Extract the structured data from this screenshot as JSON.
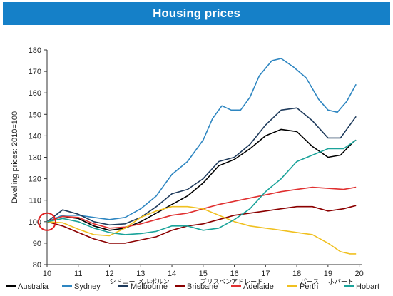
{
  "chart_data": {
    "type": "line",
    "title": "Housing prices",
    "ylabel": "Dwelling prices: 2010=100",
    "xlabel": "",
    "ylim": [
      80,
      180
    ],
    "xlim": [
      10,
      20.1
    ],
    "y_ticks": [
      80,
      90,
      100,
      110,
      120,
      130,
      140,
      150,
      160,
      170,
      180
    ],
    "x_ticks": [
      "10",
      "11",
      "12",
      "13",
      "14",
      "15",
      "16",
      "17",
      "18",
      "19",
      "20"
    ],
    "x_annotations": [
      {
        "x": 12,
        "text": "シドニー"
      },
      {
        "x": 13,
        "text": "メルボルン"
      },
      {
        "x": 15,
        "text": "ブリスベン"
      },
      {
        "x": 16,
        "text": "アドレード"
      },
      {
        "x": 18,
        "text": "パース"
      },
      {
        "x": 19,
        "text": "ホバート"
      }
    ],
    "legend_position": "bottom",
    "grid": false,
    "highlight_circle": {
      "x": 10,
      "y": 100
    },
    "series": [
      {
        "name": "Australia",
        "color": "#000000",
        "points": [
          [
            10,
            100
          ],
          [
            10.5,
            102.5
          ],
          [
            11,
            101.5
          ],
          [
            11.5,
            98
          ],
          [
            12,
            96
          ],
          [
            12.5,
            97
          ],
          [
            13,
            100
          ],
          [
            13.5,
            104
          ],
          [
            14,
            108
          ],
          [
            14.5,
            112
          ],
          [
            15,
            118
          ],
          [
            15.5,
            126
          ],
          [
            16,
            129
          ],
          [
            16.5,
            134
          ],
          [
            17,
            140
          ],
          [
            17.5,
            143
          ],
          [
            18,
            142
          ],
          [
            18.5,
            135
          ],
          [
            19,
            130
          ],
          [
            19.4,
            131
          ],
          [
            19.8,
            137
          ],
          [
            19.9,
            138
          ]
        ]
      },
      {
        "name": "Sydney",
        "color": "#2e86c1",
        "points": [
          [
            10,
            100
          ],
          [
            10.5,
            103
          ],
          [
            11,
            103
          ],
          [
            11.5,
            102
          ],
          [
            12,
            101
          ],
          [
            12.5,
            102
          ],
          [
            13,
            106
          ],
          [
            13.5,
            112
          ],
          [
            14,
            122
          ],
          [
            14.5,
            128
          ],
          [
            15,
            138
          ],
          [
            15.3,
            148
          ],
          [
            15.6,
            154
          ],
          [
            15.9,
            152
          ],
          [
            16.2,
            152
          ],
          [
            16.5,
            158
          ],
          [
            16.8,
            168
          ],
          [
            17.2,
            175
          ],
          [
            17.5,
            176
          ],
          [
            17.9,
            172
          ],
          [
            18.3,
            167
          ],
          [
            18.7,
            157
          ],
          [
            19,
            152
          ],
          [
            19.3,
            151
          ],
          [
            19.6,
            156
          ],
          [
            19.9,
            164
          ]
        ]
      },
      {
        "name": "Melbourne",
        "color": "#1f3b5c",
        "points": [
          [
            10,
            100
          ],
          [
            10.5,
            105.5
          ],
          [
            11,
            103.5
          ],
          [
            11.5,
            100
          ],
          [
            12,
            98.5
          ],
          [
            12.5,
            99
          ],
          [
            13,
            102
          ],
          [
            13.5,
            107
          ],
          [
            14,
            113
          ],
          [
            14.5,
            115
          ],
          [
            15,
            120
          ],
          [
            15.5,
            128
          ],
          [
            16,
            130
          ],
          [
            16.5,
            136
          ],
          [
            17,
            145
          ],
          [
            17.5,
            152
          ],
          [
            18,
            153
          ],
          [
            18.5,
            147
          ],
          [
            19,
            139
          ],
          [
            19.4,
            139
          ],
          [
            19.7,
            145
          ],
          [
            19.9,
            149
          ]
        ]
      },
      {
        "name": "Brisbane",
        "color": "#8b0000",
        "points": [
          [
            10,
            100
          ],
          [
            10.5,
            98
          ],
          [
            11,
            95
          ],
          [
            11.5,
            92
          ],
          [
            12,
            90
          ],
          [
            12.5,
            90
          ],
          [
            13,
            91.5
          ],
          [
            13.5,
            93
          ],
          [
            14,
            96
          ],
          [
            14.5,
            98
          ],
          [
            15,
            99
          ],
          [
            15.5,
            101
          ],
          [
            16,
            103
          ],
          [
            16.5,
            104
          ],
          [
            17,
            105
          ],
          [
            17.5,
            106
          ],
          [
            18,
            107
          ],
          [
            18.5,
            107
          ],
          [
            19,
            105
          ],
          [
            19.5,
            106
          ],
          [
            19.9,
            107.5
          ]
        ]
      },
      {
        "name": "Adelaide",
        "color": "#e03030",
        "points": [
          [
            10,
            100
          ],
          [
            10.5,
            102.5
          ],
          [
            11,
            102
          ],
          [
            11.5,
            99
          ],
          [
            12,
            97
          ],
          [
            12.5,
            97.5
          ],
          [
            13,
            99
          ],
          [
            13.5,
            101
          ],
          [
            14,
            103
          ],
          [
            14.5,
            104
          ],
          [
            15,
            106
          ],
          [
            15.5,
            108
          ],
          [
            16,
            109.5
          ],
          [
            16.5,
            111
          ],
          [
            17,
            112.5
          ],
          [
            17.5,
            114
          ],
          [
            18,
            115
          ],
          [
            18.5,
            116
          ],
          [
            19,
            115.5
          ],
          [
            19.5,
            115
          ],
          [
            19.9,
            116
          ]
        ]
      },
      {
        "name": "Perth",
        "color": "#f0c020",
        "points": [
          [
            10,
            100
          ],
          [
            10.5,
            99.5
          ],
          [
            11,
            96.5
          ],
          [
            11.5,
            94
          ],
          [
            12,
            93.5
          ],
          [
            12.5,
            97
          ],
          [
            13,
            102
          ],
          [
            13.5,
            105
          ],
          [
            14,
            107
          ],
          [
            14.5,
            107
          ],
          [
            15,
            106
          ],
          [
            15.5,
            103
          ],
          [
            16,
            100
          ],
          [
            16.5,
            98
          ],
          [
            17,
            97
          ],
          [
            17.5,
            96
          ],
          [
            18,
            95
          ],
          [
            18.5,
            94
          ],
          [
            19,
            90
          ],
          [
            19.4,
            86
          ],
          [
            19.7,
            85
          ],
          [
            19.9,
            85
          ]
        ]
      },
      {
        "name": "Hobart",
        "color": "#1aa39a",
        "points": [
          [
            10,
            100
          ],
          [
            10.5,
            101.5
          ],
          [
            11,
            100
          ],
          [
            11.5,
            97
          ],
          [
            12,
            95
          ],
          [
            12.5,
            94
          ],
          [
            13,
            94.5
          ],
          [
            13.5,
            95.5
          ],
          [
            14,
            98
          ],
          [
            14.5,
            98
          ],
          [
            15,
            96
          ],
          [
            15.5,
            97
          ],
          [
            16,
            101
          ],
          [
            16.5,
            106
          ],
          [
            17,
            114
          ],
          [
            17.5,
            120
          ],
          [
            18,
            128
          ],
          [
            18.5,
            131
          ],
          [
            19,
            134
          ],
          [
            19.5,
            134
          ],
          [
            19.9,
            138
          ]
        ]
      }
    ]
  }
}
